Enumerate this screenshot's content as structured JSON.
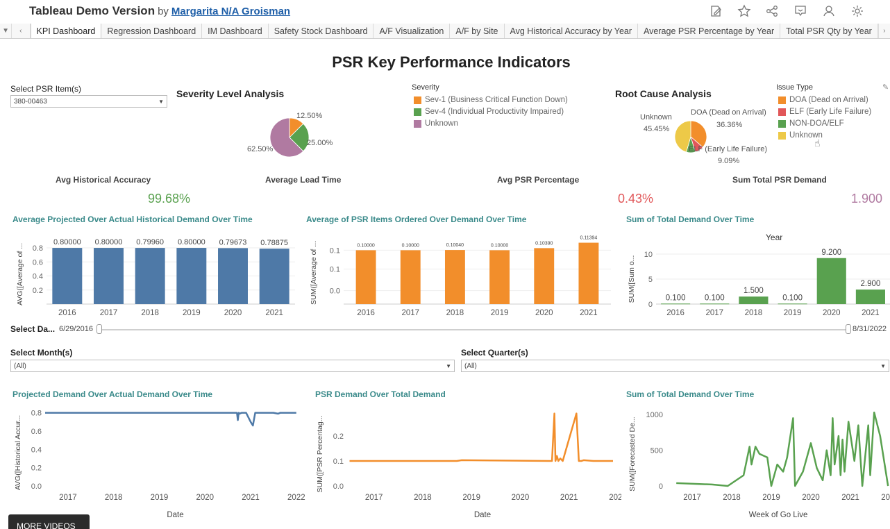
{
  "header": {
    "app_title": "Tableau Demo Version",
    "by": "by",
    "author": "Margarita N/A Groisman"
  },
  "toolbar_icons": [
    "edit-icon",
    "star-icon",
    "share-icon",
    "comment-icon",
    "subscribe-icon",
    "settings-icon"
  ],
  "tabs": [
    {
      "label": "KPI Dashboard",
      "active": true
    },
    {
      "label": "Regression Dashboard"
    },
    {
      "label": "IM Dashboard"
    },
    {
      "label": "Safety Stock Dashboard"
    },
    {
      "label": "A/F Visualization"
    },
    {
      "label": "A/F by Site"
    },
    {
      "label": "Avg Historical Accuracy by Year"
    },
    {
      "label": "Average PSR Percentage by Year"
    },
    {
      "label": "Total PSR Qty by Year"
    }
  ],
  "dashboard_title": "PSR Key Performance Indicators",
  "filters": {
    "psr_item_label": "Select PSR Item(s)",
    "psr_item_value": "380-00463",
    "date_label": "Select Da...",
    "date_start": "6/29/2016",
    "date_end": "8/31/2022",
    "month_label": "Select Month(s)",
    "month_value": "(All)",
    "quarter_label": "Select Quarter(s)",
    "quarter_value": "(All)"
  },
  "severity": {
    "title": "Severity Level Analysis",
    "legend_title": "Severity",
    "legend": [
      {
        "label": "Sev-1 (Business Critical Function Down)",
        "color": "#f28e2b"
      },
      {
        "label": "Sev-4 (Individual Productivity Impaired)",
        "color": "#59a14f"
      },
      {
        "label": "Unknown",
        "color": "#b07aa1"
      }
    ],
    "slices": [
      {
        "label": "12.50%",
        "value": 12.5,
        "color": "#f28e2b"
      },
      {
        "label": "25.00%",
        "value": 25.0,
        "color": "#59a14f"
      },
      {
        "label": "62.50%",
        "value": 62.5,
        "color": "#b07aa1"
      }
    ]
  },
  "root_cause": {
    "title": "Root Cause Analysis",
    "legend_title": "Issue Type",
    "legend": [
      {
        "label": "DOA (Dead on Arrival)",
        "color": "#f28e2b"
      },
      {
        "label": "ELF (Early Life Failure)",
        "color": "#e15759"
      },
      {
        "label": "NON-DOA/ELF",
        "color": "#59a14f"
      },
      {
        "label": "Unknown",
        "color": "#edc948"
      }
    ],
    "labels": {
      "unknown_name": "Unknown",
      "unknown_pct": "45.45%",
      "doa_name": "DOA (Dead on Arrival)",
      "doa_pct": "36.36%",
      "elf_name": "ELF (Early Life Failure)",
      "elf_pct": "9.09%"
    },
    "slices": [
      {
        "name": "DOA",
        "value": 36.36,
        "color": "#f28e2b"
      },
      {
        "name": "ELF",
        "value": 9.09,
        "color": "#e15759"
      },
      {
        "name": "NON-DOA/ELF",
        "value": 9.09,
        "color": "#59a14f"
      },
      {
        "name": "Unknown",
        "value": 45.45,
        "color": "#edc948"
      }
    ]
  },
  "kpis": [
    {
      "label": "Avg Historical Accuracy",
      "value": "99.68%",
      "color": "#59a14f"
    },
    {
      "label": "Average Lead Time",
      "value": "",
      "color": "#333333"
    },
    {
      "label": "Avg PSR Percentage",
      "value": "0.43%",
      "color": "#e15759"
    },
    {
      "label": "Sum Total PSR Demand",
      "value": "1.900",
      "color": "#b07aa1"
    }
  ],
  "chart_data": [
    {
      "type": "bar",
      "title": "Average Projected Over Actual Historical Demand Over Time",
      "ylabel": "AVG([Average of ...",
      "categories": [
        "2016",
        "2017",
        "2018",
        "2019",
        "2020",
        "2021"
      ],
      "values": [
        0.8,
        0.8,
        0.7996,
        0.8,
        0.79673,
        0.78875
      ],
      "data_labels": [
        "0.80000",
        "0.80000",
        "0.79960",
        "0.80000",
        "0.79673",
        "0.78875"
      ],
      "yticks": [
        "0.8",
        "0.6",
        "0.4",
        "0.2"
      ],
      "ylim": [
        0,
        0.85
      ],
      "color": "#4e79a7"
    },
    {
      "type": "bar",
      "title": "Average of PSR Items Ordered Over Demand Over Time",
      "ylabel": "SUM([Average of ...",
      "categories": [
        "2016",
        "2017",
        "2018",
        "2019",
        "2020",
        "2021"
      ],
      "values": [
        0.1,
        0.1,
        0.1004,
        0.1,
        0.1039,
        0.11394
      ],
      "data_labels": [
        "0.10000",
        "0.10000",
        "0.10040",
        "0.10000",
        "0.10390",
        "0.11394"
      ],
      "yticks": [
        "0.1",
        "0.1",
        "0.0"
      ],
      "ylim": [
        0,
        0.116
      ],
      "color": "#f28e2b"
    },
    {
      "type": "bar",
      "title": "Sum of Total Demand Over Time",
      "header": "Year",
      "ylabel": "SUM([Sum o...",
      "categories": [
        "2016",
        "2017",
        "2018",
        "2019",
        "2020",
        "2021"
      ],
      "values": [
        0.1,
        0.1,
        1.5,
        0.1,
        9.2,
        2.9
      ],
      "data_labels": [
        "0.100",
        "0.100",
        "1.500",
        "0.100",
        "9.200",
        "2.900"
      ],
      "yticks": [
        "10",
        "5",
        "0"
      ],
      "ylim": [
        0,
        10
      ],
      "color": "#59a14f"
    },
    {
      "type": "line",
      "title": "Projected Demand Over Actual Demand Over Time",
      "ylabel": "AVG([Historical Accur...",
      "xlabel": "Date",
      "xticks": [
        "2017",
        "2018",
        "2019",
        "2020",
        "2021",
        "2022"
      ],
      "yticks": [
        "0.8",
        "0.6",
        "0.4",
        "0.2",
        "0.0"
      ],
      "xlim": [
        2016.5,
        2022.2
      ],
      "ylim": [
        0,
        0.85
      ],
      "x": [
        2016.5,
        2020.0,
        2020.7,
        2020.72,
        2020.74,
        2020.76,
        2020.8,
        2020.9,
        2021.0,
        2021.05,
        2021.1,
        2021.5,
        2021.6,
        2021.65,
        2022.0
      ],
      "y": [
        0.8,
        0.8,
        0.8,
        0.72,
        0.8,
        0.79,
        0.8,
        0.8,
        0.7,
        0.66,
        0.8,
        0.8,
        0.79,
        0.8,
        0.8
      ],
      "color": "#4e79a7"
    },
    {
      "type": "line",
      "title": "PSR Demand Over Total Demand",
      "ylabel": "SUM([PSR Percentag...",
      "xlabel": "Date",
      "xticks": [
        "2017",
        "2018",
        "2019",
        "2020",
        "2021",
        "2022"
      ],
      "yticks": [
        "0.2",
        "0.1",
        "0.0"
      ],
      "xlim": [
        2016.45,
        2022.0
      ],
      "ylim": [
        0,
        0.3
      ],
      "x": [
        2016.5,
        2018.7,
        2018.8,
        2020.6,
        2020.65,
        2020.7,
        2020.72,
        2020.75,
        2020.78,
        2020.82,
        2020.87,
        2021.15,
        2021.2,
        2021.25,
        2021.3,
        2021.5,
        2021.6,
        2021.9
      ],
      "y": [
        0.1,
        0.1,
        0.103,
        0.1,
        0.1,
        0.29,
        0.1,
        0.12,
        0.1,
        0.11,
        0.1,
        0.29,
        0.1,
        0.1,
        0.103,
        0.1,
        0.1,
        0.1
      ],
      "color": "#f28e2b"
    },
    {
      "type": "line",
      "title": "Sum of Total Demand Over Time",
      "ylabel": "SUM([Forecasted De...",
      "xlabel": "Week of Go Live",
      "xticks": [
        "2017",
        "2018",
        "2019",
        "2020",
        "2021",
        "2022"
      ],
      "yticks": [
        "1000",
        "500",
        "0"
      ],
      "xlim": [
        2016.35,
        2022.0
      ],
      "ylim": [
        0,
        1050
      ],
      "x": [
        2016.6,
        2017.5,
        2017.9,
        2018.3,
        2018.45,
        2018.5,
        2018.6,
        2018.65,
        2018.7,
        2018.9,
        2019.0,
        2019.15,
        2019.3,
        2019.4,
        2019.55,
        2019.6,
        2019.8,
        2020.0,
        2020.15,
        2020.3,
        2020.4,
        2020.5,
        2020.55,
        2020.6,
        2020.7,
        2020.75,
        2020.8,
        2020.85,
        2020.95,
        2021.1,
        2021.2,
        2021.3,
        2021.45,
        2021.5,
        2021.6,
        2021.75,
        2021.95
      ],
      "y": [
        40,
        20,
        0,
        150,
        550,
        300,
        550,
        500,
        450,
        400,
        0,
        300,
        200,
        400,
        950,
        0,
        200,
        600,
        250,
        80,
        500,
        150,
        950,
        300,
        700,
        150,
        650,
        200,
        900,
        350,
        850,
        0,
        850,
        150,
        1030,
        700,
        0
      ],
      "color": "#59a14f"
    }
  ],
  "overlay": {
    "more_videos": "MORE VIDEOS"
  }
}
